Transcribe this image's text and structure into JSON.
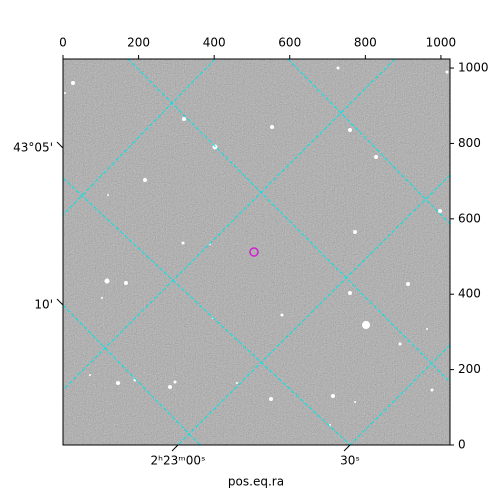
{
  "chart_data": {
    "type": "image",
    "xlabel": "pos.eq.ra",
    "xlim": [
      0,
      1024
    ],
    "xticks": [
      0,
      200,
      400,
      600,
      800,
      1000
    ],
    "ylim": [
      0,
      1024
    ],
    "yticks": [
      0,
      200,
      400,
      600,
      800,
      1000
    ],
    "ra_tick_labels": [
      "2ʰ23ᵐ00ˢ",
      "30ˢ"
    ],
    "dec_tick_labels": [
      "43°05'",
      "10'"
    ]
  }
}
